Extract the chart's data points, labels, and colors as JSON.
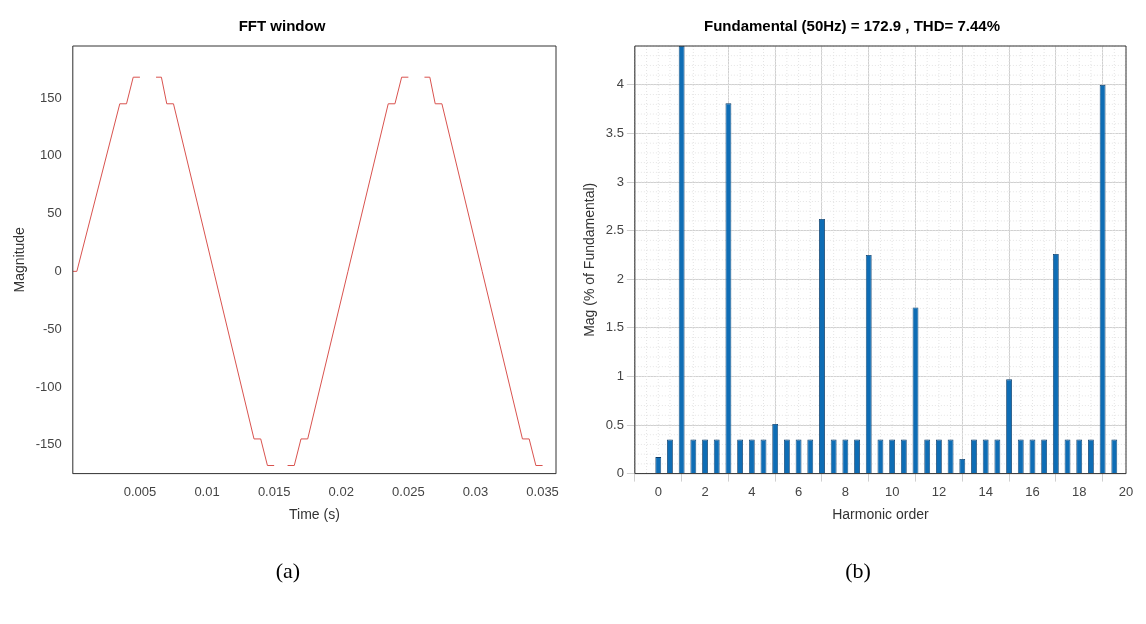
{
  "chart_data": [
    {
      "type": "line",
      "title": "FFT window",
      "xlabel": "Time (s)",
      "ylabel": "Magnitude",
      "annotations": [
        "(a)"
      ],
      "grid": false,
      "legend": false,
      "marker": "none",
      "line_style": "solid",
      "xlim": [
        0,
        0.036
      ],
      "ylim": [
        -175,
        195
      ],
      "xticks": [
        0.005,
        0.01,
        0.015,
        0.02,
        0.025,
        0.03,
        0.035
      ],
      "yticks": [
        -150,
        -100,
        -50,
        0,
        50,
        100,
        150
      ],
      "series": [
        {
          "color": "#d9534f",
          "x": [
            0,
            0.0003,
            0.0035,
            0.004,
            0.0045,
            0.005,
            0.0054,
            0.0058,
            0.0062,
            0.0066,
            0.007,
            0.0075,
            0.0105,
            0.0135,
            0.014,
            0.0145,
            0.015,
            0.0152,
            0.0158,
            0.016,
            0.0165,
            0.017,
            0.0175,
            0.0205,
            0.0235,
            0.024,
            0.0245,
            0.025,
            0.0254,
            0.0258,
            0.0262,
            0.0266,
            0.027,
            0.0275,
            0.0305,
            0.0335,
            0.034,
            0.0345,
            0.035
          ],
          "values": [
            0,
            0,
            145,
            145,
            168,
            168,
            null,
            null,
            168,
            168,
            145,
            145,
            0,
            -145,
            -145,
            -168,
            -168,
            null,
            null,
            -168,
            -168,
            -145,
            -145,
            0,
            145,
            145,
            168,
            168,
            null,
            null,
            168,
            168,
            145,
            145,
            0,
            -145,
            -145,
            -168,
            -168
          ]
        }
      ]
    },
    {
      "type": "bar",
      "title": "Fundamental (50Hz) = 172.9 , THD= 7.44%",
      "xlabel": "Harmonic order",
      "ylabel": "Mag (% of Fundamental)",
      "annotations": [
        "(b)"
      ],
      "grid": true,
      "legend": false,
      "xlim": [
        -1,
        20
      ],
      "ylim": [
        0,
        4.4
      ],
      "xticks": [
        0,
        2,
        4,
        6,
        8,
        10,
        12,
        14,
        16,
        18,
        20
      ],
      "yticks": [
        0,
        0.5,
        1,
        1.5,
        2,
        2.5,
        3,
        3.5,
        4
      ],
      "series": [
        {
          "color": "#0e6db5",
          "x": [
            0,
            0.5,
            1,
            1.5,
            2,
            2.5,
            3,
            3.5,
            4,
            4.5,
            5,
            5.5,
            6,
            6.5,
            7,
            7.5,
            8,
            8.5,
            9,
            9.5,
            10,
            10.5,
            11,
            11.5,
            12,
            12.5,
            13,
            13.5,
            14,
            14.5,
            15,
            15.5,
            16,
            16.5,
            17,
            17.5,
            18,
            18.5,
            19,
            19.5
          ],
          "values": [
            0.17,
            0.35,
            4.4,
            0.35,
            0.35,
            0.35,
            3.81,
            0.35,
            0.35,
            0.35,
            0.51,
            0.35,
            0.35,
            0.35,
            2.62,
            0.35,
            0.35,
            0.35,
            2.25,
            0.35,
            0.35,
            0.35,
            1.71,
            0.35,
            0.35,
            0.35,
            0.15,
            0.35,
            0.35,
            0.35,
            0.97,
            0.35,
            0.35,
            0.35,
            2.26,
            0.35,
            0.35,
            0.35,
            4.0,
            0.35
          ]
        }
      ]
    }
  ]
}
